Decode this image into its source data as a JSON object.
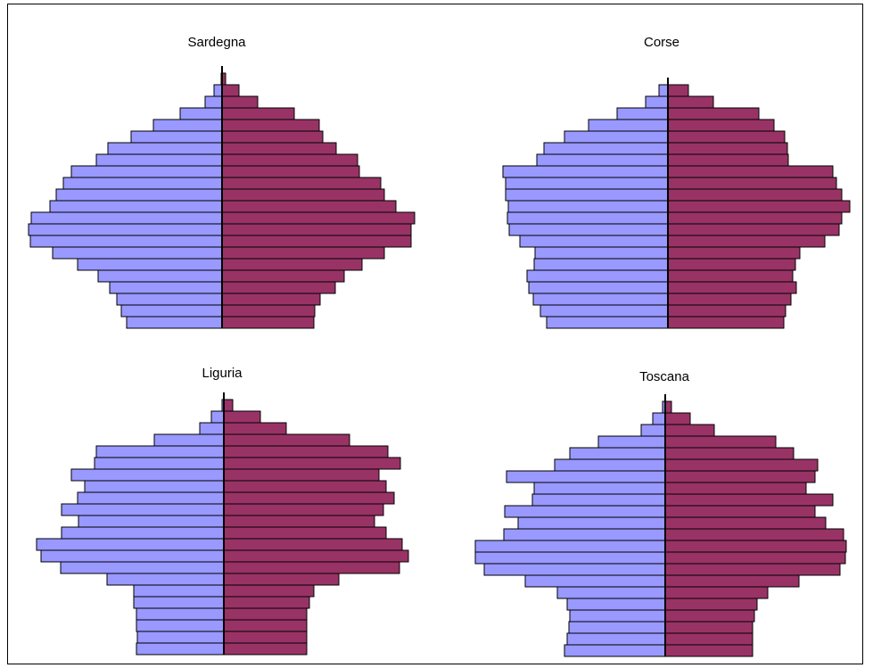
{
  "colors": {
    "male": "#9999ff",
    "female": "#993366",
    "stroke": "#000000"
  },
  "chart_data": [
    {
      "type": "bar",
      "orientation": "horizontal-pyramid",
      "title": "Sardegna",
      "series": [
        {
          "name": "",
          "values": [
            107,
            113,
            118,
            126,
            139,
            162,
            190,
            215,
            217,
            214,
            193,
            186,
            178,
            169,
            141,
            128,
            102,
            77,
            47,
            19,
            9,
            1
          ]
        },
        {
          "name": "",
          "values": [
            103,
            104,
            110,
            127,
            137,
            157,
            182,
            212,
            212,
            216,
            195,
            182,
            178,
            154,
            152,
            128,
            113,
            109,
            81,
            40,
            19,
            4
          ]
        }
      ]
    },
    {
      "type": "bar",
      "orientation": "horizontal-pyramid",
      "title": "Corse",
      "series": [
        {
          "name": "",
          "values": [
            136,
            143,
            151,
            156,
            158,
            150,
            149,
            166,
            178,
            180,
            179,
            182,
            182,
            185,
            147,
            139,
            116,
            89,
            57,
            25,
            10
          ]
        },
        {
          "name": "",
          "values": [
            130,
            132,
            138,
            144,
            140,
            143,
            148,
            176,
            192,
            195,
            204,
            195,
            189,
            185,
            135,
            134,
            131,
            119,
            102,
            51,
            23
          ]
        }
      ]
    },
    {
      "type": "bar",
      "orientation": "horizontal-pyramid",
      "title": "Liguria",
      "series": [
        {
          "name": "",
          "values": [
            98,
            97,
            98,
            98,
            101,
            101,
            131,
            183,
            205,
            210,
            182,
            163,
            182,
            164,
            156,
            171,
            145,
            143,
            78,
            27,
            14,
            2
          ]
        },
        {
          "name": "",
          "values": [
            93,
            93,
            93,
            93,
            96,
            101,
            129,
            197,
            207,
            200,
            182,
            169,
            179,
            191,
            182,
            174,
            198,
            184,
            141,
            70,
            41,
            10
          ]
        }
      ]
    },
    {
      "type": "bar",
      "orientation": "horizontal-pyramid",
      "title": "Toscana",
      "series": [
        {
          "name": "",
          "values": [
            113,
            110,
            108,
            107,
            110,
            121,
            157,
            203,
            213,
            213,
            181,
            165,
            180,
            149,
            147,
            178,
            124,
            107,
            75,
            27,
            14,
            3
          ]
        },
        {
          "name": "",
          "values": [
            98,
            98,
            98,
            100,
            103,
            115,
            150,
            196,
            202,
            203,
            200,
            180,
            168,
            188,
            158,
            168,
            171,
            144,
            124,
            55,
            28,
            7
          ]
        }
      ]
    }
  ]
}
